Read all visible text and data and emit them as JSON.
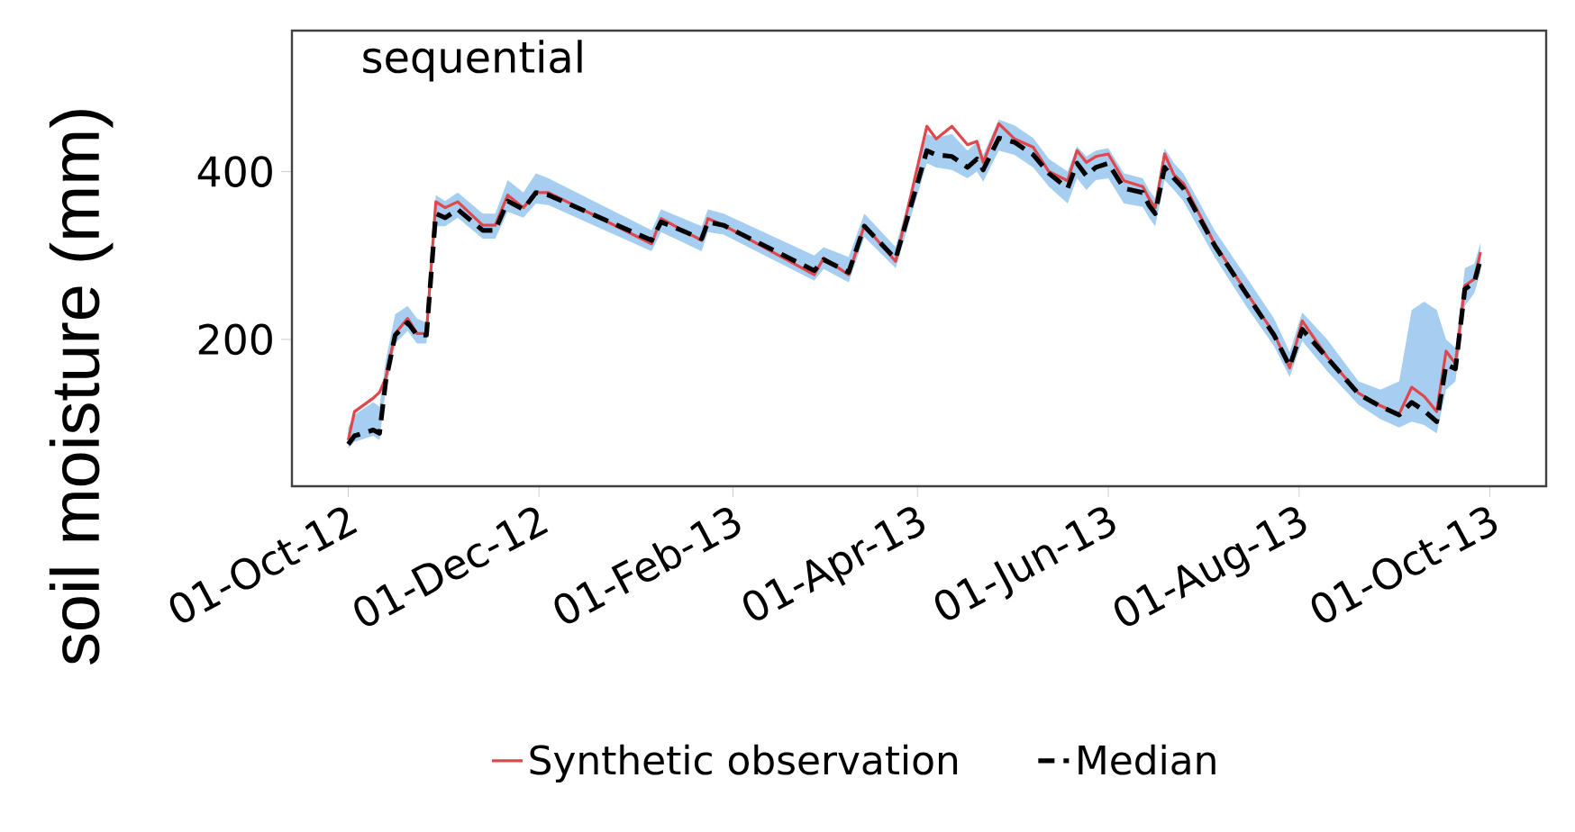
{
  "chart_data": {
    "type": "line",
    "title": "sequential",
    "ylabel": "soil moisture (mm)",
    "x": [
      "2012-10-01",
      "2012-10-03",
      "2012-10-09",
      "2012-10-11",
      "2012-10-13",
      "2012-10-16",
      "2012-10-20",
      "2012-10-23",
      "2012-10-26",
      "2012-10-29",
      "2012-11-01",
      "2012-11-05",
      "2012-11-13",
      "2012-11-17",
      "2012-11-21",
      "2012-11-26",
      "2012-11-30",
      "2012-12-04",
      "2013-01-06",
      "2013-01-09",
      "2013-01-22",
      "2013-01-24",
      "2013-01-29",
      "2013-02-27",
      "2013-03-02",
      "2013-03-10",
      "2013-03-15",
      "2013-03-25",
      "2013-04-04",
      "2013-04-07",
      "2013-04-12",
      "2013-04-17",
      "2013-04-20",
      "2013-04-22",
      "2013-04-27",
      "2013-05-02",
      "2013-05-08",
      "2013-05-13",
      "2013-05-19",
      "2013-05-22",
      "2013-05-25",
      "2013-05-28",
      "2013-06-01",
      "2013-06-06",
      "2013-06-12",
      "2013-06-14",
      "2013-06-16",
      "2013-06-19",
      "2013-06-22",
      "2013-06-25",
      "2013-07-05",
      "2013-07-15",
      "2013-07-24",
      "2013-07-29",
      "2013-08-02",
      "2013-08-10",
      "2013-08-20",
      "2013-08-27",
      "2013-09-02",
      "2013-09-06",
      "2013-09-10",
      "2013-09-14",
      "2013-09-17",
      "2013-09-20",
      "2013-09-23",
      "2013-09-26",
      "2013-09-28"
    ],
    "series": [
      {
        "name": "Synthetic observation",
        "color": "#e0474c",
        "line_style": "solid",
        "values": [
          80,
          114,
          130,
          137,
          154,
          207,
          225,
          207,
          207,
          364,
          357,
          364,
          336,
          336,
          372,
          357,
          375,
          375,
          314,
          344,
          318,
          344,
          336,
          277,
          297,
          277,
          336,
          293,
          454,
          439,
          454,
          432,
          436,
          411,
          457,
          439,
          429,
          400,
          389,
          425,
          411,
          418,
          421,
          389,
          382,
          368,
          357,
          421,
          396,
          386,
          314,
          257,
          207,
          166,
          222,
          179,
          136,
          121,
          111,
          143,
          132,
          114,
          186,
          171,
          264,
          272,
          304
        ]
      },
      {
        "name": "Median",
        "color": "#000000",
        "line_style": "dashed",
        "values": [
          75,
          85,
          92,
          88,
          150,
          205,
          220,
          205,
          205,
          350,
          345,
          355,
          330,
          330,
          365,
          355,
          375,
          372,
          318,
          340,
          320,
          340,
          336,
          282,
          295,
          280,
          335,
          296,
          425,
          420,
          418,
          405,
          415,
          402,
          440,
          435,
          420,
          398,
          380,
          410,
          395,
          405,
          410,
          380,
          375,
          360,
          350,
          405,
          392,
          380,
          312,
          255,
          205,
          168,
          212,
          178,
          135,
          120,
          110,
          125,
          115,
          102,
          170,
          165,
          260,
          268,
          295
        ],
        "lower": [
          70,
          78,
          85,
          80,
          140,
          195,
          210,
          195,
          195,
          335,
          335,
          345,
          320,
          320,
          352,
          345,
          362,
          360,
          305,
          328,
          305,
          328,
          325,
          270,
          284,
          268,
          322,
          285,
          410,
          405,
          402,
          392,
          400,
          388,
          425,
          420,
          405,
          382,
          362,
          392,
          378,
          390,
          392,
          362,
          358,
          345,
          335,
          390,
          378,
          365,
          298,
          240,
          192,
          155,
          198,
          162,
          122,
          105,
          95,
          102,
          98,
          88,
          140,
          150,
          240,
          255,
          280
        ],
        "upper": [
          95,
          110,
          125,
          120,
          175,
          230,
          240,
          225,
          220,
          372,
          365,
          375,
          350,
          350,
          390,
          375,
          398,
          392,
          330,
          355,
          335,
          355,
          350,
          300,
          310,
          298,
          350,
          310,
          445,
          440,
          445,
          425,
          435,
          420,
          462,
          455,
          440,
          415,
          400,
          430,
          418,
          425,
          428,
          398,
          392,
          378,
          368,
          428,
          410,
          398,
          330,
          275,
          225,
          185,
          232,
          200,
          150,
          140,
          150,
          235,
          245,
          235,
          200,
          190,
          285,
          290,
          315
        ]
      }
    ],
    "xlim": [
      "2012-09-13",
      "2013-10-19"
    ],
    "xticks": [
      {
        "value": "2012-10-01",
        "label": "01-Oct-12"
      },
      {
        "value": "2012-12-01",
        "label": "01-Dec-12"
      },
      {
        "value": "2013-02-01",
        "label": "01-Feb-13"
      },
      {
        "value": "2013-04-01",
        "label": "01-Apr-13"
      },
      {
        "value": "2013-06-01",
        "label": "01-Jun-13"
      },
      {
        "value": "2013-08-01",
        "label": "01-Aug-13"
      },
      {
        "value": "2013-10-01",
        "label": "01-Oct-13"
      }
    ],
    "ylim": [
      25,
      568
    ],
    "yticks": [
      200,
      400
    ],
    "legend": "bottom",
    "marker": "none"
  }
}
